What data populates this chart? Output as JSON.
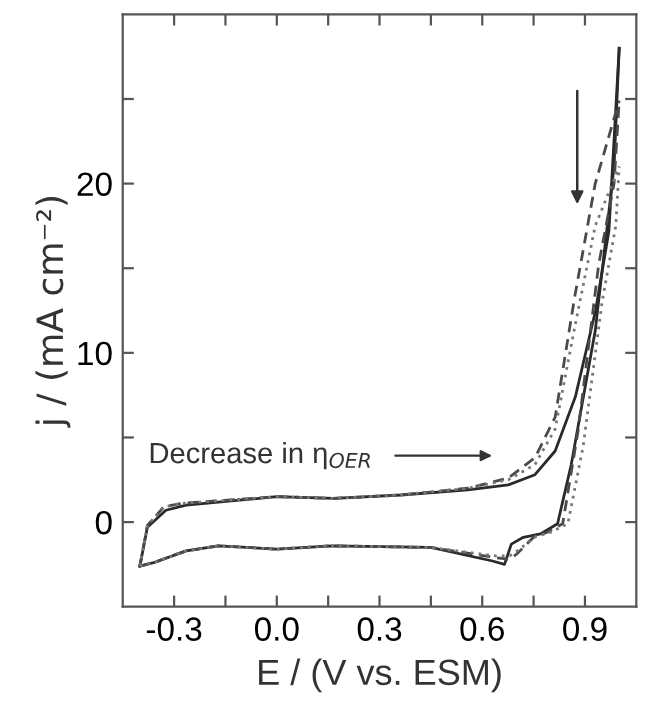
{
  "chart_data": {
    "type": "line",
    "xlabel": "E / (V vs. ESM)",
    "ylabel": "j / (mA cm⁻²)",
    "xlim": [
      -0.45,
      1.05
    ],
    "ylim": [
      -5,
      30
    ],
    "xticks": [
      {
        "value": -0.3,
        "label": "-0.3"
      },
      {
        "value": -0.15,
        "label": null
      },
      {
        "value": 0.0,
        "label": "0.0"
      },
      {
        "value": 0.15,
        "label": null
      },
      0.3,
      {
        "value": 0.45,
        "label": null
      },
      0.6,
      {
        "value": 0.75,
        "label": null
      },
      0.9
    ],
    "yticks": [
      0,
      {
        "value": 5,
        "label": null
      },
      10,
      {
        "value": 15,
        "label": null
      },
      20,
      {
        "value": 25,
        "label": null
      }
    ],
    "grid": false,
    "legend": false,
    "marker": "none",
    "annotations": [
      "Decrease in η$_{OER}$"
    ],
    "series": [
      {
        "color": "#2a2a2a",
        "line_style": "solid",
        "x": [
          -0.4,
          -0.378,
          -0.324,
          -0.265,
          0.0,
          0.167,
          0.362,
          0.558,
          0.676,
          0.754,
          0.813,
          0.872,
          0.931,
          0.97,
          1.0
        ],
        "values": [
          -2.6,
          -0.3,
          0.7,
          1.0,
          1.5,
          1.4,
          1.6,
          1.9,
          2.2,
          2.8,
          4.2,
          7.4,
          12.5,
          17.2,
          28
        ]
      },
      {
        "color": "#2a2a2a",
        "line_style": "solid",
        "x": [
          -0.4,
          -0.36,
          -0.265,
          -0.17,
          0.0,
          0.16,
          0.45,
          0.63,
          0.665,
          0.685,
          0.72,
          0.77,
          0.82,
          0.86,
          0.93,
          0.985,
          1.0
        ],
        "values": [
          -2.6,
          -2.4,
          -1.7,
          -1.4,
          -1.6,
          -1.4,
          -1.5,
          -2.3,
          -2.5,
          -1.3,
          -0.9,
          -0.7,
          -0.1,
          3.4,
          11.3,
          21,
          28
        ]
      },
      {
        "color": "#4a4a4a",
        "line_style": "dashed",
        "x": [
          -0.4,
          -0.378,
          -0.33,
          -0.28,
          0.0,
          0.167,
          0.362,
          0.558,
          0.676,
          0.754,
          0.813,
          0.87,
          0.93,
          1.0
        ],
        "values": [
          -2.6,
          -0.2,
          0.9,
          1.1,
          1.5,
          1.4,
          1.6,
          2.0,
          2.6,
          3.8,
          6.2,
          13.3,
          20,
          24.9
        ]
      },
      {
        "color": "#4a4a4a",
        "line_style": "dashed",
        "x": [
          -0.4,
          -0.36,
          -0.265,
          -0.17,
          0.0,
          0.16,
          0.45,
          0.64,
          0.68,
          0.7,
          0.75,
          0.79,
          0.835,
          0.88,
          0.94,
          0.985,
          1.0
        ],
        "values": [
          -2.6,
          -2.4,
          -1.7,
          -1.4,
          -1.6,
          -1.4,
          -1.5,
          -2.1,
          -2.2,
          -1.9,
          -0.9,
          -0.6,
          -0.1,
          5.4,
          15.2,
          20,
          24.9
        ]
      },
      {
        "color": "#777777",
        "line_style": "dotted",
        "x": [
          -0.4,
          -0.378,
          -0.33,
          -0.28,
          0.0,
          0.167,
          0.362,
          0.558,
          0.676,
          0.754,
          0.813,
          0.87,
          0.93,
          1.0
        ],
        "values": [
          -2.6,
          -0.2,
          0.9,
          1.1,
          1.5,
          1.4,
          1.6,
          2.0,
          2.5,
          3.4,
          5.5,
          11.5,
          17.5,
          21
        ]
      },
      {
        "color": "#777777",
        "line_style": "dotted",
        "x": [
          -0.4,
          -0.36,
          -0.265,
          -0.17,
          0.0,
          0.16,
          0.45,
          0.64,
          0.68,
          0.71,
          0.75,
          0.8,
          0.85,
          0.895,
          0.95,
          0.99,
          1.0
        ],
        "values": [
          -2.6,
          -2.4,
          -1.7,
          -1.4,
          -1.6,
          -1.4,
          -1.5,
          -2.0,
          -2.0,
          -1.6,
          -0.9,
          -0.6,
          -0.1,
          4.5,
          13,
          17.5,
          21
        ]
      }
    ]
  }
}
